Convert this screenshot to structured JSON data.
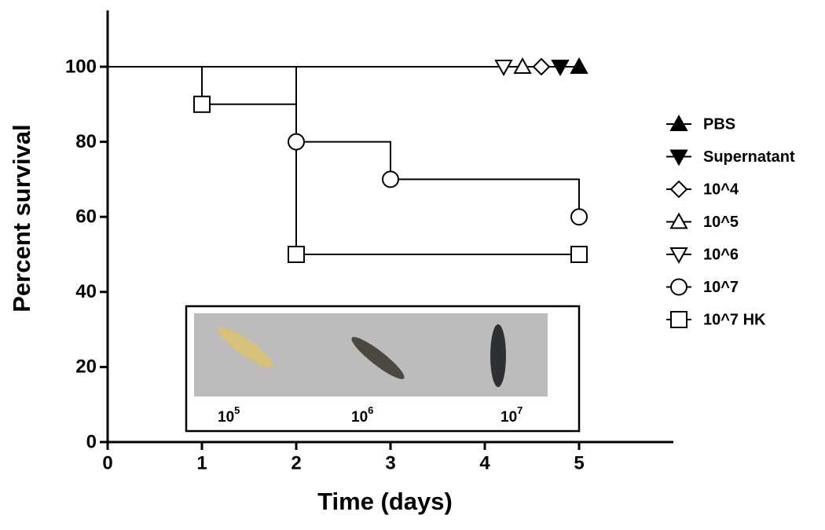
{
  "chart_data": {
    "type": "survival",
    "xlabel": "Time (days)",
    "ylabel": "Percent survival",
    "xlim": [
      0,
      6
    ],
    "xticks": [
      0,
      1,
      2,
      3,
      4,
      5
    ],
    "ylim": [
      0,
      115
    ],
    "yticks": [
      0,
      20,
      40,
      60,
      80,
      100
    ],
    "series": [
      {
        "name": "PBS",
        "color": "#000000",
        "marker": "triangle-up",
        "filled": true,
        "x": [
          0,
          5
        ],
        "values": [
          100,
          100
        ]
      },
      {
        "name": "Supernatant",
        "color": "#000000",
        "marker": "triangle-down",
        "filled": true,
        "x": [
          0,
          4.8
        ],
        "values": [
          100,
          100
        ]
      },
      {
        "name": "10^4",
        "color": "#000000",
        "marker": "diamond",
        "filled": false,
        "x": [
          0,
          4.6
        ],
        "values": [
          100,
          100
        ]
      },
      {
        "name": "10^5",
        "color": "#000000",
        "marker": "triangle-up",
        "filled": false,
        "x": [
          0,
          4.4
        ],
        "values": [
          100,
          100
        ]
      },
      {
        "name": "10^6",
        "color": "#000000",
        "marker": "triangle-down",
        "filled": false,
        "x": [
          0,
          4.2
        ],
        "values": [
          100,
          100
        ]
      },
      {
        "name": "10^7",
        "color": "#000000",
        "marker": "circle",
        "filled": false,
        "x": [
          0,
          2,
          3,
          5
        ],
        "values": [
          100,
          80,
          70,
          60
        ]
      },
      {
        "name": "10^7 HK",
        "color": "#000000",
        "marker": "square",
        "filled": false,
        "x": [
          0,
          1,
          2,
          5
        ],
        "values": [
          100,
          90,
          50,
          50
        ]
      }
    ],
    "inset": {
      "labels": [
        {
          "base": "10",
          "exponent": "5"
        },
        {
          "base": "10",
          "exponent": "6"
        },
        {
          "base": "10",
          "exponent": "7"
        }
      ]
    }
  }
}
